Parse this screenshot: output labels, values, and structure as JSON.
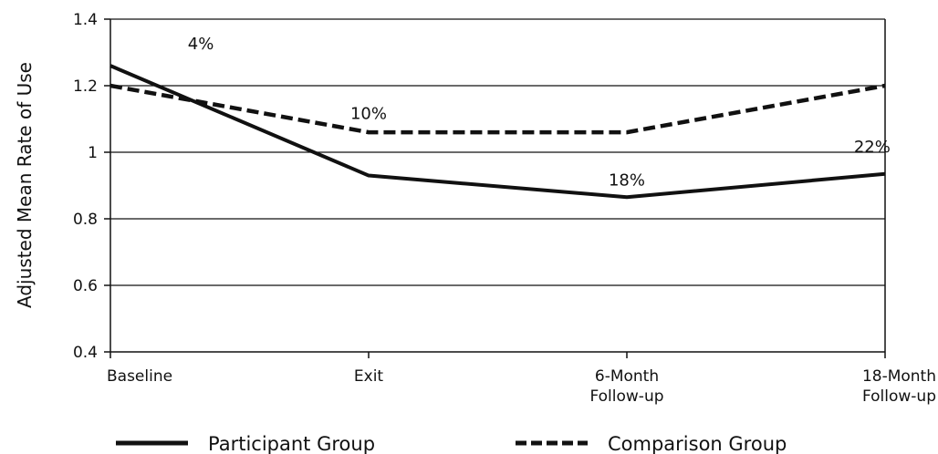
{
  "chart_data": {
    "type": "line",
    "title": "",
    "xlabel": "",
    "ylabel": "Adjusted Mean Rate of Use",
    "ylim": [
      0.4,
      1.4
    ],
    "yticks": [
      0.4,
      0.6,
      0.8,
      1,
      1.2,
      1.4
    ],
    "ytick_labels": [
      "0.4",
      "0.6",
      "0.8",
      "1",
      "1.2",
      "1.4"
    ],
    "categories": [
      [
        "Baseline"
      ],
      [
        "Exit"
      ],
      [
        "6-Month",
        "Follow-up"
      ],
      [
        "18-Month",
        "Follow-up"
      ]
    ],
    "grid": true,
    "legend_placement": "bottom",
    "series": [
      {
        "name": "Participant Group",
        "style": "solid",
        "color": "#111111",
        "values": [
          1.26,
          0.93,
          0.865,
          0.935
        ]
      },
      {
        "name": "Comparison Group",
        "style": "dashed",
        "color": "#111111",
        "values": [
          1.2,
          1.06,
          1.06,
          1.2
        ]
      }
    ],
    "annotations": [
      {
        "text": "4%",
        "category_index": 0.35,
        "y": 1.31
      },
      {
        "text": "10%",
        "category_index": 1.0,
        "y": 1.1
      },
      {
        "text": "18%",
        "category_index": 2.0,
        "y": 0.9
      },
      {
        "text": "22%",
        "category_index": 2.95,
        "y": 1.0
      }
    ]
  }
}
